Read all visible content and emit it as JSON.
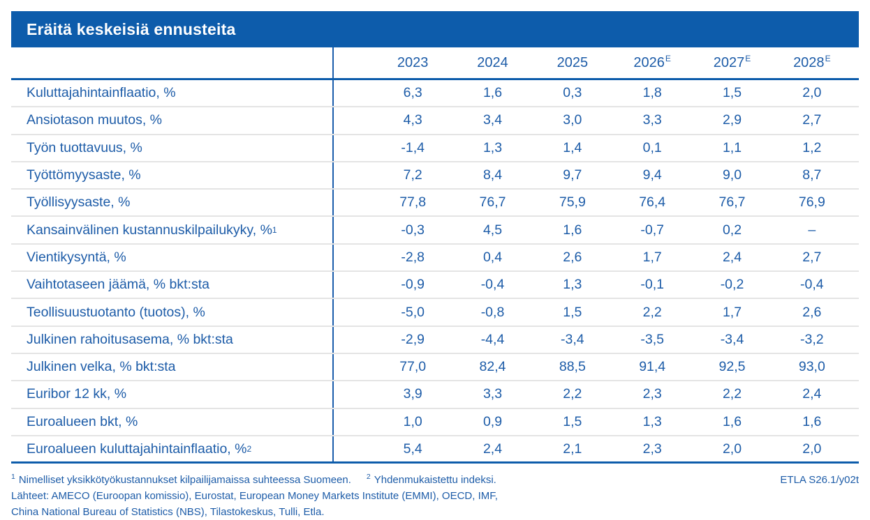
{
  "title": "Eräitä keskeisiä ennusteita",
  "colors": {
    "primary_blue": "#0d5cab",
    "text_blue": "#1d5ca8",
    "separator_gray": "#e4e4e4"
  },
  "table": {
    "columns": [
      {
        "label": "2023",
        "superscript": ""
      },
      {
        "label": "2024",
        "superscript": ""
      },
      {
        "label": "2025",
        "superscript": ""
      },
      {
        "label": "2026",
        "superscript": "E"
      },
      {
        "label": "2027",
        "superscript": "E"
      },
      {
        "label": "2028",
        "superscript": "E"
      }
    ],
    "rows": [
      {
        "label": "Kuluttajahintainflaatio, %",
        "superscript": "",
        "values": [
          "6,3",
          "1,6",
          "0,3",
          "1,8",
          "1,5",
          "2,0"
        ]
      },
      {
        "label": "Ansiotason muutos, %",
        "superscript": "",
        "values": [
          "4,3",
          "3,4",
          "3,0",
          "3,3",
          "2,9",
          "2,7"
        ]
      },
      {
        "label": "Työn tuottavuus, %",
        "superscript": "",
        "values": [
          "-1,4",
          "1,3",
          "1,4",
          "0,1",
          "1,1",
          "1,2"
        ]
      },
      {
        "label": "Työttömyysaste, %",
        "superscript": "",
        "values": [
          "7,2",
          "8,4",
          "9,7",
          "9,4",
          "9,0",
          "8,7"
        ]
      },
      {
        "label": "Työllisyysaste, %",
        "superscript": "",
        "values": [
          "77,8",
          "76,7",
          "75,9",
          "76,4",
          "76,7",
          "76,9"
        ]
      },
      {
        "label": "Kansainvälinen kustannuskilpailukyky, %",
        "superscript": "1",
        "values": [
          "-0,3",
          "4,5",
          "1,6",
          "-0,7",
          "0,2",
          "–"
        ]
      },
      {
        "label": "Vientikysyntä, %",
        "superscript": "",
        "values": [
          "-2,8",
          "0,4",
          "2,6",
          "1,7",
          "2,4",
          "2,7"
        ]
      },
      {
        "label": "Vaihtotaseen jäämä, % bkt:sta",
        "superscript": "",
        "values": [
          "-0,9",
          "-0,4",
          "1,3",
          "-0,1",
          "-0,2",
          "-0,4"
        ]
      },
      {
        "label": "Teollisuustuotanto (tuotos), %",
        "superscript": "",
        "values": [
          "-5,0",
          "-0,8",
          "1,5",
          "2,2",
          "1,7",
          "2,6"
        ]
      },
      {
        "label": "Julkinen rahoitusasema, % bkt:sta",
        "superscript": "",
        "values": [
          "-2,9",
          "-4,4",
          "-3,4",
          "-3,5",
          "-3,4",
          "-3,2"
        ]
      },
      {
        "label": "Julkinen velka, % bkt:sta",
        "superscript": "",
        "values": [
          "77,0",
          "82,4",
          "88,5",
          "91,4",
          "92,5",
          "93,0"
        ]
      },
      {
        "label": "Euribor 12 kk, %",
        "superscript": "",
        "values": [
          "3,9",
          "3,3",
          "2,2",
          "2,3",
          "2,2",
          "2,4"
        ]
      },
      {
        "label": "Euroalueen bkt, %",
        "superscript": "",
        "values": [
          "1,0",
          "0,9",
          "1,5",
          "1,3",
          "1,6",
          "1,6"
        ]
      },
      {
        "label": "Euroalueen kuluttajahintainflaatio, %",
        "superscript": "2",
        "values": [
          "5,4",
          "2,4",
          "2,1",
          "2,3",
          "2,0",
          "2,0"
        ]
      }
    ]
  },
  "footnotes": {
    "note1_sup": "1",
    "note1": "Nimelliset yksikkötyökustannukset kilpailijamaissa suhteessa Suomeen.",
    "note2_sup": "2",
    "note2": "Yhdenmukaistettu indeksi.",
    "source_code": "ETLA S26.1/y02t",
    "sources_line1": "Lähteet: AMECO (Euroopan komissio), Eurostat, European Money Markets Institute (EMMI), OECD, IMF,",
    "sources_line2": "China National Bureau of Statistics (NBS), Tilastokeskus, Tulli, Etla."
  }
}
